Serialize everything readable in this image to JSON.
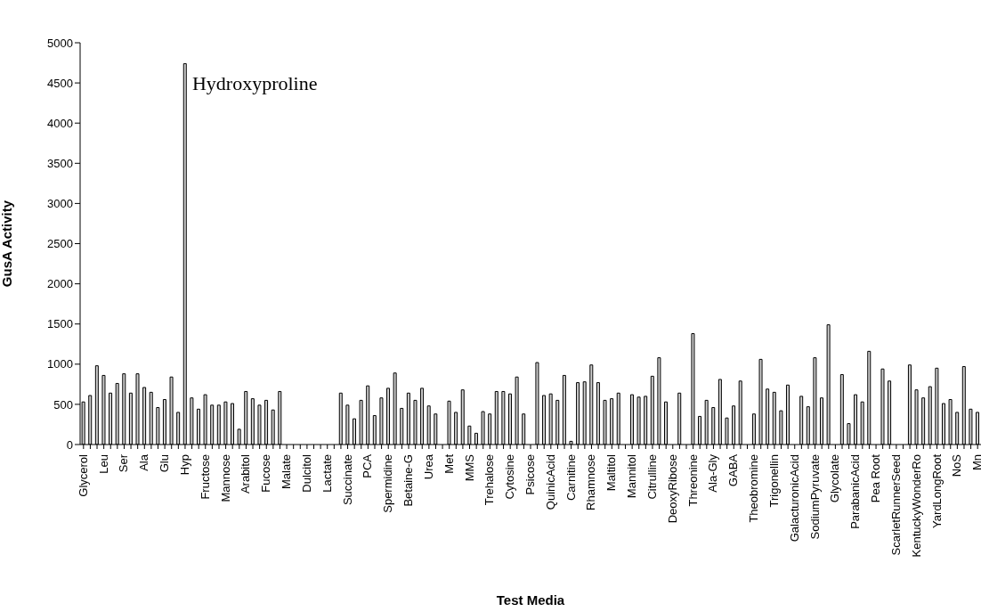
{
  "chart_data": {
    "type": "bar",
    "xlabel": "Test Media",
    "ylabel": "GusA Activity",
    "categories": [
      "Glycerol",
      null,
      null,
      "Leu",
      null,
      null,
      "Ser",
      null,
      null,
      "Ala",
      null,
      null,
      "Glu",
      null,
      null,
      "Hyp",
      null,
      null,
      "Fructose",
      null,
      null,
      "Mannose",
      null,
      null,
      "Arabitol",
      null,
      null,
      "Fucose",
      null,
      null,
      "Malate",
      null,
      null,
      "Dulcitol",
      null,
      null,
      "Lactate",
      null,
      null,
      "Succinate",
      null,
      null,
      "PCA",
      null,
      null,
      "Spermidine",
      null,
      null,
      "Betaine-G",
      null,
      null,
      "Urea",
      null,
      null,
      "Met",
      null,
      null,
      "MMS",
      null,
      null,
      "Trehalose",
      null,
      null,
      "Cytosine",
      null,
      null,
      "Psicose",
      null,
      null,
      "QuinicAcid",
      null,
      null,
      "Carnitine",
      null,
      null,
      "Rhamnose",
      null,
      null,
      "Maltitol",
      null,
      null,
      "Mannitol",
      null,
      null,
      "Citrulline",
      null,
      null,
      "DeoxyRibose",
      null,
      null,
      "Threonine",
      null,
      null,
      "Ala-Gly",
      null,
      null,
      "GABA",
      null,
      null,
      "Theobromine",
      null,
      null,
      "Trigonellin",
      null,
      null,
      "GalacturonicAcid",
      null,
      null,
      "SodiumPyruvate",
      null,
      null,
      "Glycolate",
      null,
      null,
      "ParabanicAcid",
      null,
      null,
      "Pea Root",
      null,
      null,
      "ScarletRunnerSeed",
      null,
      null,
      "KentuckyWonderRo",
      null,
      null,
      "YardLongRoot",
      null,
      null,
      "NoS",
      null,
      null,
      "Mn"
    ],
    "values": [
      530,
      610,
      980,
      860,
      640,
      760,
      880,
      640,
      880,
      710,
      650,
      460,
      560,
      840,
      400,
      4740,
      580,
      440,
      620,
      490,
      490,
      530,
      510,
      190,
      660,
      570,
      490,
      550,
      430,
      660,
      0,
      0,
      0,
      0,
      0,
      0,
      0,
      0,
      640,
      490,
      320,
      550,
      730,
      360,
      580,
      700,
      890,
      450,
      640,
      550,
      700,
      480,
      380,
      0,
      540,
      400,
      680,
      230,
      140,
      410,
      380,
      660,
      660,
      630,
      840,
      380,
      0,
      1020,
      610,
      630,
      550,
      860,
      40,
      770,
      780,
      990,
      770,
      550,
      570,
      640,
      0,
      620,
      590,
      600,
      850,
      1080,
      530,
      0,
      640,
      0,
      1380,
      350,
      550,
      460,
      810,
      330,
      480,
      790,
      0,
      380,
      1060,
      690,
      650,
      420,
      740,
      0,
      600,
      470,
      1080,
      580,
      1490,
      0,
      870,
      260,
      620,
      530,
      1160,
      0,
      940,
      790,
      0,
      0,
      990,
      680,
      580,
      720,
      950,
      510,
      560,
      400,
      970,
      440,
      400
    ],
    "color": "#d0d0d0",
    "ylim": [
      0,
      5000
    ],
    "yticks": [
      0,
      500,
      1000,
      1500,
      2000,
      2500,
      3000,
      3500,
      4000,
      4500,
      5000
    ],
    "annotations": [
      {
        "text": "Hydroxyproline",
        "x": "Hyp",
        "y": 4470
      }
    ]
  }
}
